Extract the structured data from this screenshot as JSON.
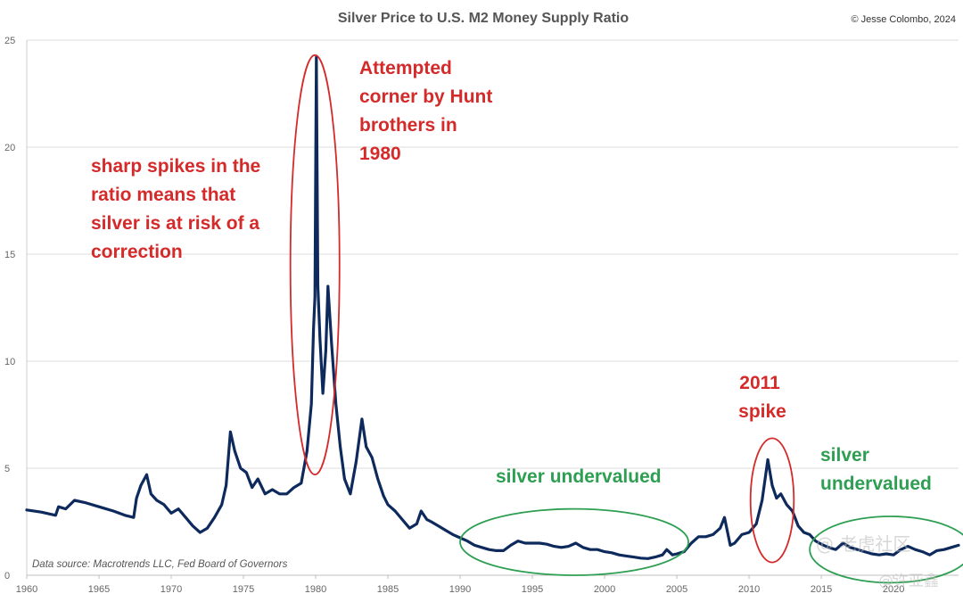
{
  "chart_data": {
    "type": "line",
    "title": "Silver Price to U.S. M2 Money Supply Ratio",
    "copyright": "© Jesse Colombo, 2024",
    "source_note": "Data source: Macrotrends LLC, Fed Board of Governors",
    "xlabel": "",
    "ylabel": "",
    "xlim": [
      1960,
      2024.5
    ],
    "ylim": [
      0,
      25
    ],
    "x_ticks": [
      1960,
      1965,
      1970,
      1975,
      1980,
      1985,
      1990,
      1995,
      2000,
      2005,
      2010,
      2015,
      2020
    ],
    "y_ticks": [
      0,
      5,
      10,
      15,
      20,
      25
    ],
    "grid": true,
    "line_color": "#0e2a5c",
    "series": [
      {
        "points": [
          [
            1960.0,
            3.05
          ],
          [
            1961.0,
            2.95
          ],
          [
            1962.0,
            2.8
          ],
          [
            1962.2,
            3.2
          ],
          [
            1962.7,
            3.1
          ],
          [
            1963.3,
            3.5
          ],
          [
            1964.0,
            3.4
          ],
          [
            1965.0,
            3.2
          ],
          [
            1966.0,
            3.0
          ],
          [
            1966.8,
            2.8
          ],
          [
            1967.4,
            2.7
          ],
          [
            1967.6,
            3.6
          ],
          [
            1967.9,
            4.2
          ],
          [
            1968.3,
            4.7
          ],
          [
            1968.6,
            3.8
          ],
          [
            1969.0,
            3.5
          ],
          [
            1969.5,
            3.3
          ],
          [
            1970.0,
            2.9
          ],
          [
            1970.5,
            3.1
          ],
          [
            1971.0,
            2.7
          ],
          [
            1971.5,
            2.3
          ],
          [
            1972.0,
            2.0
          ],
          [
            1972.5,
            2.2
          ],
          [
            1973.0,
            2.7
          ],
          [
            1973.5,
            3.3
          ],
          [
            1973.8,
            4.2
          ],
          [
            1974.1,
            6.7
          ],
          [
            1974.4,
            5.8
          ],
          [
            1974.8,
            5.0
          ],
          [
            1975.2,
            4.8
          ],
          [
            1975.6,
            4.1
          ],
          [
            1976.0,
            4.5
          ],
          [
            1976.5,
            3.8
          ],
          [
            1977.0,
            4.0
          ],
          [
            1977.5,
            3.8
          ],
          [
            1978.0,
            3.8
          ],
          [
            1978.5,
            4.1
          ],
          [
            1979.0,
            4.3
          ],
          [
            1979.4,
            5.8
          ],
          [
            1979.7,
            8.0
          ],
          [
            1979.85,
            11.5
          ],
          [
            1979.95,
            13.0
          ],
          [
            1980.05,
            24.2
          ],
          [
            1980.15,
            13.5
          ],
          [
            1980.3,
            11.0
          ],
          [
            1980.5,
            8.5
          ],
          [
            1980.7,
            10.5
          ],
          [
            1980.85,
            13.5
          ],
          [
            1981.1,
            10.8
          ],
          [
            1981.4,
            8.0
          ],
          [
            1981.7,
            6.0
          ],
          [
            1982.0,
            4.5
          ],
          [
            1982.4,
            3.8
          ],
          [
            1982.8,
            5.3
          ],
          [
            1983.2,
            7.3
          ],
          [
            1983.5,
            6.0
          ],
          [
            1983.9,
            5.5
          ],
          [
            1984.3,
            4.5
          ],
          [
            1984.7,
            3.7
          ],
          [
            1985.0,
            3.3
          ],
          [
            1985.5,
            3.0
          ],
          [
            1986.0,
            2.6
          ],
          [
            1986.5,
            2.2
          ],
          [
            1987.0,
            2.4
          ],
          [
            1987.3,
            3.0
          ],
          [
            1987.7,
            2.6
          ],
          [
            1988.0,
            2.5
          ],
          [
            1988.5,
            2.3
          ],
          [
            1989.0,
            2.1
          ],
          [
            1989.5,
            1.9
          ],
          [
            1990.0,
            1.75
          ],
          [
            1990.5,
            1.6
          ],
          [
            1991.0,
            1.4
          ],
          [
            1991.5,
            1.3
          ],
          [
            1992.0,
            1.2
          ],
          [
            1992.5,
            1.15
          ],
          [
            1993.0,
            1.15
          ],
          [
            1993.5,
            1.4
          ],
          [
            1994.0,
            1.6
          ],
          [
            1994.5,
            1.5
          ],
          [
            1995.0,
            1.5
          ],
          [
            1995.5,
            1.5
          ],
          [
            1996.0,
            1.45
          ],
          [
            1996.5,
            1.35
          ],
          [
            1997.0,
            1.3
          ],
          [
            1997.5,
            1.35
          ],
          [
            1998.0,
            1.5
          ],
          [
            1998.5,
            1.3
          ],
          [
            1999.0,
            1.2
          ],
          [
            1999.5,
            1.2
          ],
          [
            2000.0,
            1.1
          ],
          [
            2000.5,
            1.05
          ],
          [
            2001.0,
            0.95
          ],
          [
            2001.5,
            0.9
          ],
          [
            2002.0,
            0.85
          ],
          [
            2002.5,
            0.8
          ],
          [
            2003.0,
            0.78
          ],
          [
            2003.5,
            0.85
          ],
          [
            2004.0,
            0.95
          ],
          [
            2004.3,
            1.2
          ],
          [
            2004.7,
            0.95
          ],
          [
            2005.0,
            1.0
          ],
          [
            2005.5,
            1.1
          ],
          [
            2006.0,
            1.5
          ],
          [
            2006.5,
            1.8
          ],
          [
            2007.0,
            1.8
          ],
          [
            2007.5,
            1.9
          ],
          [
            2008.0,
            2.2
          ],
          [
            2008.3,
            2.7
          ],
          [
            2008.7,
            1.4
          ],
          [
            2009.0,
            1.5
          ],
          [
            2009.5,
            1.9
          ],
          [
            2010.0,
            2.0
          ],
          [
            2010.5,
            2.4
          ],
          [
            2010.9,
            3.5
          ],
          [
            2011.3,
            5.4
          ],
          [
            2011.6,
            4.2
          ],
          [
            2011.9,
            3.6
          ],
          [
            2012.2,
            3.8
          ],
          [
            2012.6,
            3.3
          ],
          [
            2013.0,
            3.0
          ],
          [
            2013.4,
            2.3
          ],
          [
            2013.8,
            2.0
          ],
          [
            2014.2,
            1.9
          ],
          [
            2014.6,
            1.6
          ],
          [
            2015.0,
            1.45
          ],
          [
            2015.5,
            1.3
          ],
          [
            2016.0,
            1.2
          ],
          [
            2016.5,
            1.5
          ],
          [
            2017.0,
            1.3
          ],
          [
            2017.5,
            1.2
          ],
          [
            2018.0,
            1.1
          ],
          [
            2018.5,
            1.0
          ],
          [
            2019.0,
            0.95
          ],
          [
            2019.5,
            1.0
          ],
          [
            2020.0,
            0.95
          ],
          [
            2020.5,
            1.2
          ],
          [
            2021.0,
            1.35
          ],
          [
            2021.5,
            1.2
          ],
          [
            2022.0,
            1.1
          ],
          [
            2022.5,
            0.95
          ],
          [
            2023.0,
            1.15
          ],
          [
            2023.5,
            1.2
          ],
          [
            2024.0,
            1.3
          ],
          [
            2024.5,
            1.4
          ]
        ]
      }
    ],
    "annotations": [
      {
        "id": "hunt",
        "color": "#d42a2a",
        "lines": [
          "Attempted",
          "corner by Hunt",
          "brothers in",
          "1980"
        ]
      },
      {
        "id": "spikes",
        "color": "#d42a2a",
        "lines": [
          "sharp spikes in the",
          "ratio means that",
          "silver is at risk of a",
          "correction"
        ]
      },
      {
        "id": "spike2011",
        "color": "#d42a2a",
        "lines": [
          "2011",
          "spike"
        ]
      },
      {
        "id": "under1",
        "color": "#2e9e52",
        "lines": [
          "silver undervalued"
        ]
      },
      {
        "id": "under2",
        "color": "#2e9e52",
        "lines": [
          "silver",
          "undervalued"
        ]
      }
    ],
    "ellipse_colors": {
      "red": "#d42a2a",
      "green": "#2e9e52"
    }
  },
  "watermark": [
    "@ 老虎社区",
    "@许亚鑫"
  ]
}
